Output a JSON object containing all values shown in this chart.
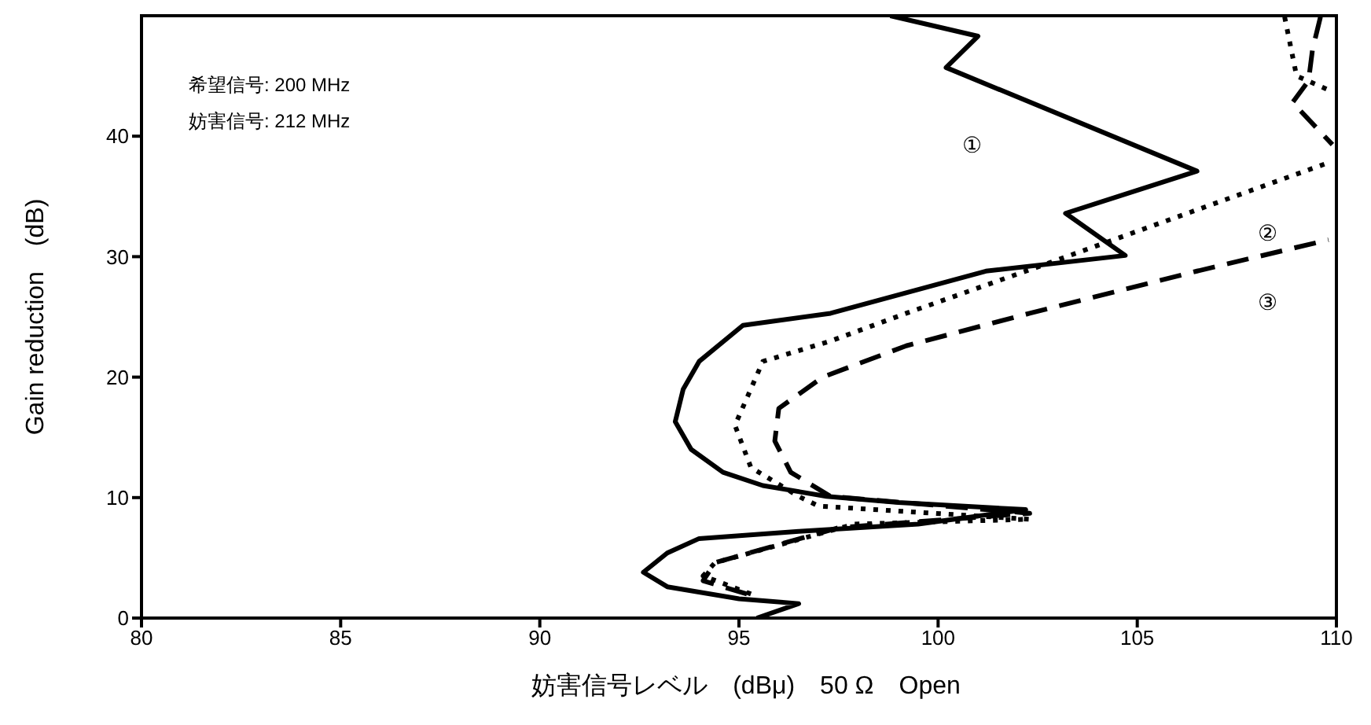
{
  "chart_data": {
    "type": "line",
    "xlabel": "妨害信号レベル　(dBμ)　50 Ω　Open",
    "ylabel": "Gain reduction　(dB)",
    "xlim": [
      80,
      110
    ],
    "xticks": [
      80,
      85,
      90,
      95,
      100,
      105,
      110
    ],
    "ylim": [
      0,
      50
    ],
    "yticks": [
      0,
      10,
      20,
      30,
      40
    ],
    "grid": false,
    "legend": false,
    "marker": "none",
    "series": [
      {
        "color": "#000000",
        "line_style": "solid",
        "x": [
          95.45,
          96.5,
          95,
          93.2,
          92.6,
          93.2,
          94,
          96.5,
          99.5,
          102.2,
          99,
          97.2,
          95.6,
          94.6,
          93.8,
          93.4,
          93.6,
          94,
          95.1,
          97.3,
          101.2,
          104.7,
          103.2,
          106.5,
          100.2,
          101,
          98.8
        ],
        "values": [
          0,
          1.2,
          1.6,
          2.6,
          3.8,
          5.4,
          6.6,
          7.2,
          7.8,
          9,
          9.6,
          10.1,
          11,
          12.1,
          14,
          16.3,
          19,
          21.3,
          24.3,
          25.3,
          28.8,
          30.1,
          33.6,
          37.1,
          45.7,
          48.3,
          50
        ]
      },
      {
        "color": "#000000",
        "line_style": "dotted",
        "x": [
          95.3,
          94.1,
          94.4,
          97.9,
          102.3,
          97,
          96.5,
          95.3,
          94.9,
          95.6,
          97.3,
          99.2,
          102.8,
          109.8
        ],
        "values": [
          2,
          3.5,
          4.6,
          7.8,
          8.2,
          9.3,
          10.1,
          12.5,
          16,
          21.3,
          23,
          25.3,
          29.5,
          37.8
        ]
      },
      {
        "color": "#000000",
        "line_style": "dotted",
        "x": [
          108.7,
          109,
          109.9
        ],
        "values": [
          49.9,
          45,
          43.7
        ]
      },
      {
        "color": "#000000",
        "line_style": "dashed",
        "x": [
          95.2,
          94.1,
          94.4,
          97.5,
          102.3,
          97.3,
          96.3,
          95.9,
          96,
          97.1,
          99.2,
          102.3,
          106.5,
          109.8
        ],
        "values": [
          2,
          3.1,
          4.6,
          7.5,
          8.7,
          10.1,
          12.1,
          14.7,
          17.4,
          20,
          22.6,
          25.3,
          28.8,
          31.4
        ]
      },
      {
        "color": "#000000",
        "line_style": "dashed",
        "x": [
          109.6,
          109.4,
          109.3,
          108.9,
          109.9
        ],
        "values": [
          49.9,
          47.2,
          44.6,
          42.8,
          39.3
        ]
      }
    ],
    "annotations": [
      "希望信号: 200 MHz",
      "妨害信号: 212 MHz",
      "①",
      "②",
      "③"
    ]
  }
}
